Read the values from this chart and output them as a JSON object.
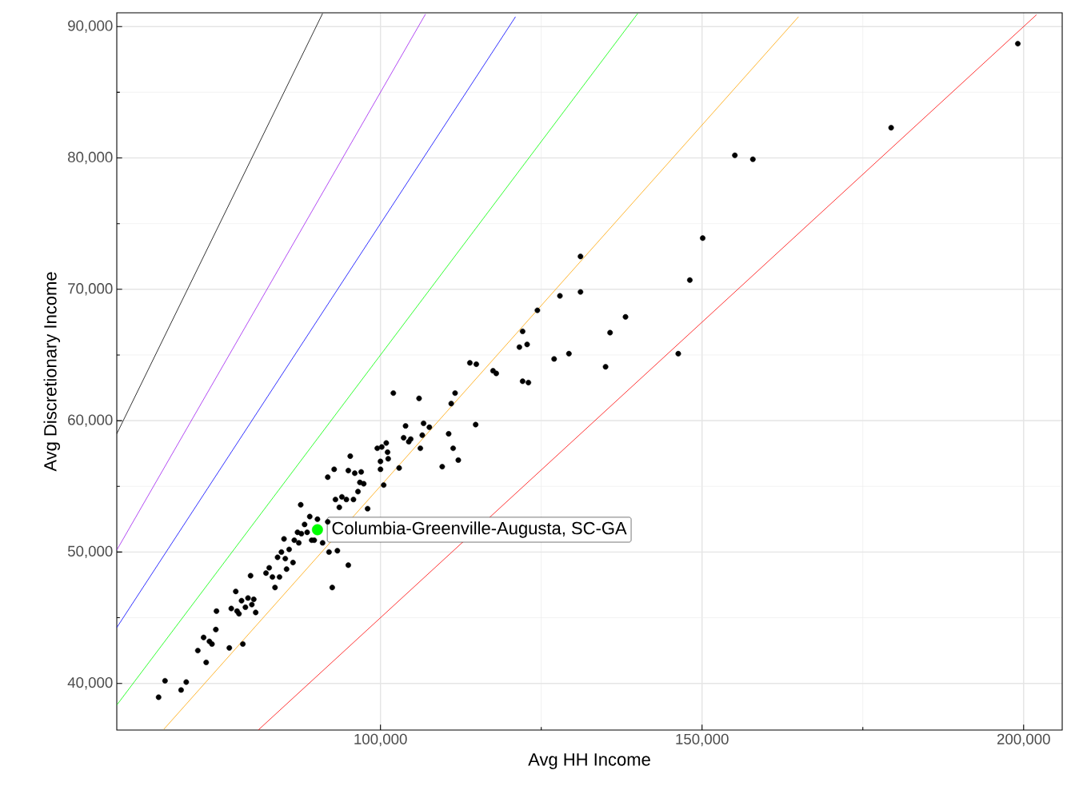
{
  "chart_data": {
    "type": "scatter",
    "xlabel": "Avg HH Income",
    "ylabel": "Avg Discretionary Income",
    "xlim": [
      59000,
      206000
    ],
    "ylim": [
      36450,
      91050
    ],
    "xticks": [
      {
        "value": 100000,
        "label": "100,000"
      },
      {
        "value": 150000,
        "label": "150,000"
      },
      {
        "value": 200000,
        "label": "200,000"
      }
    ],
    "yticks": [
      {
        "value": 40000,
        "label": "40,000"
      },
      {
        "value": 50000,
        "label": "50,000"
      },
      {
        "value": 60000,
        "label": "60,000"
      },
      {
        "value": 70000,
        "label": "70,000"
      },
      {
        "value": 80000,
        "label": "80,000"
      },
      {
        "value": 90000,
        "label": "90,000"
      }
    ],
    "grid": true,
    "annotations": [
      {
        "text": "Columbia-Greenville-Augusta, SC-GA",
        "x": 90200,
        "y": 51700
      }
    ],
    "series": [
      {
        "type": "line",
        "marker": "none",
        "color": "#000000",
        "x": [
          59000,
          91000
        ],
        "values": [
          59000,
          91000
        ]
      },
      {
        "type": "line",
        "marker": "none",
        "color": "#a020f0",
        "x": [
          59000,
          107000
        ],
        "values": [
          50150,
          90950
        ]
      },
      {
        "type": "line",
        "marker": "none",
        "color": "#0000ff",
        "x": [
          59000,
          121000
        ],
        "values": [
          44250,
          90750
        ]
      },
      {
        "type": "line",
        "marker": "none",
        "color": "#00ff00",
        "x": [
          59000,
          140000
        ],
        "values": [
          38350,
          91000
        ]
      },
      {
        "type": "line",
        "marker": "none",
        "color": "#ffa500",
        "x": [
          66300,
          165000
        ],
        "values": [
          36500,
          90750
        ]
      },
      {
        "type": "line",
        "marker": "none",
        "color": "#ff0000",
        "x": [
          81000,
          202000
        ],
        "values": [
          36450,
          90900
        ]
      },
      {
        "marker": "circle",
        "color": "#000000",
        "x": [
          65500,
          66500,
          69000,
          69800,
          71600,
          72500,
          72900,
          73400,
          73800,
          74400,
          74500,
          76500,
          76800,
          77500,
          77700,
          78000,
          78400,
          78600,
          79000,
          79400,
          79800,
          80000,
          80300,
          80600,
          82200,
          82700,
          83200,
          83600,
          84000,
          84300,
          84600,
          85000,
          85200,
          85400,
          85800,
          86400,
          86600,
          87100,
          87300,
          87600,
          87700,
          88200,
          88600,
          89000,
          89300,
          89700,
          90200,
          91000,
          91800,
          91800,
          92000,
          92500,
          92800,
          93000,
          93300,
          93600,
          94000,
          94700,
          95000,
          95000,
          95300,
          95800,
          96000,
          96500,
          96800,
          97000,
          97400,
          98000,
          99500,
          100000,
          100000,
          100200,
          100500,
          100900,
          101100,
          101200,
          102000,
          102900,
          103600,
          103900,
          104400,
          104700,
          106000,
          106200,
          106500,
          106700,
          107600,
          109600,
          110600,
          111000,
          111300,
          111600,
          112100,
          113900,
          114800,
          114900,
          117500,
          118000,
          121600,
          122100,
          122100,
          122800,
          123000,
          124400,
          127000,
          127900,
          129300,
          131100,
          131100,
          135000,
          135700,
          138100,
          146300,
          148100,
          150100,
          155100,
          157900,
          179400,
          199100
        ],
        "values": [
          38950,
          40200,
          39500,
          40100,
          42500,
          43500,
          41600,
          43200,
          43000,
          44100,
          45500,
          42700,
          45700,
          47000,
          45500,
          45300,
          46300,
          43000,
          45800,
          46500,
          48200,
          46000,
          46400,
          45400,
          48400,
          48800,
          48100,
          47300,
          49600,
          48100,
          50000,
          51000,
          49500,
          48700,
          50200,
          49200,
          50900,
          51500,
          50700,
          53600,
          51400,
          52100,
          51500,
          52700,
          50900,
          50900,
          52500,
          50700,
          52300,
          55700,
          50000,
          47300,
          56300,
          54000,
          50100,
          53400,
          54200,
          54000,
          49000,
          56200,
          57300,
          54000,
          56000,
          54600,
          55300,
          56100,
          55200,
          53300,
          57900,
          56300,
          56900,
          58000,
          55100,
          58300,
          57600,
          57100,
          62100,
          56400,
          58700,
          59600,
          58400,
          58600,
          61700,
          57900,
          58900,
          59800,
          59500,
          56500,
          59000,
          61300,
          57900,
          62100,
          57000,
          64400,
          59700,
          64300,
          63800,
          63600,
          65600,
          66800,
          63000,
          65800,
          62900,
          68400,
          64700,
          69500,
          65100,
          72500,
          69800,
          64100,
          66700,
          67900,
          65100,
          70700,
          73900,
          80200,
          79900,
          82300,
          88700
        ]
      },
      {
        "marker": "circle",
        "color": "#00ff00",
        "x": [
          90200
        ],
        "values": [
          51700
        ]
      }
    ]
  }
}
